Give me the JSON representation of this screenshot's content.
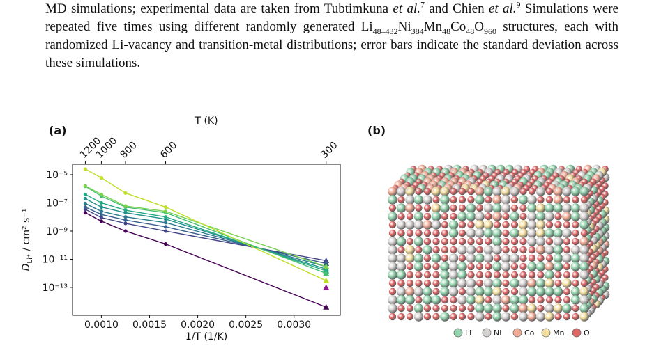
{
  "caption": [
    {
      "text": "MD simulations; experimental data are taken from Tubtimkuna ",
      "style": "normal"
    },
    {
      "text": "et al.",
      "style": "italic"
    },
    {
      "text": "7",
      "style": "sup"
    },
    {
      "text": " and Chien ",
      "style": "normal"
    },
    {
      "text": "et al.",
      "style": "italic"
    },
    {
      "text": "9",
      "style": "sup"
    },
    {
      "text": " Simulations were repeated five times using different randomly generated Li",
      "style": "normal"
    },
    {
      "text": "48–432",
      "style": "sub"
    },
    {
      "text": "Ni",
      "style": "normal"
    },
    {
      "text": "384",
      "style": "sub"
    },
    {
      "text": "Mn",
      "style": "normal"
    },
    {
      "text": "48",
      "style": "sub"
    },
    {
      "text": "Co",
      "style": "normal"
    },
    {
      "text": "48",
      "style": "sub"
    },
    {
      "text": "O",
      "style": "normal"
    },
    {
      "text": "960",
      "style": "sub"
    },
    {
      "text": " structures, each with randomized Li-vacancy and transition-metal distributions; error bars indicate the standard deviation across these simulations.",
      "style": "normal"
    }
  ],
  "panels": [
    "(a)",
    "(b)"
  ],
  "chart_data": {
    "type": "line",
    "x_label": "1/T (1/K)",
    "y_label": {
      "symbol": "D",
      "subscript": "Li⁺",
      "units": " / cm² s⁻¹"
    },
    "top_axis_label": "T (K)",
    "top_ticks": [
      1200,
      1000,
      800,
      600,
      300
    ],
    "x": [
      0.000833,
      0.001,
      0.00125,
      0.001667,
      0.003333
    ],
    "xlim": [
      0.0007,
      0.00348
    ],
    "xticks": [
      {
        "value": 0.001,
        "label": "0.0010"
      },
      {
        "value": 0.0015,
        "label": "0.0015"
      },
      {
        "value": 0.002,
        "label": "0.0020"
      },
      {
        "value": 0.0025,
        "label": "0.0025"
      },
      {
        "value": 0.003,
        "label": "0.0030"
      }
    ],
    "ylim": [
      1.05e-15,
      5.5e-05
    ],
    "log_y": true,
    "yticks": [
      {
        "value": 1e-05,
        "label": "10⁻⁵"
      },
      {
        "value": 1e-07,
        "label": "10⁻⁷"
      },
      {
        "value": 1e-09,
        "label": "10⁻⁹"
      },
      {
        "value": 1e-11,
        "label": "10⁻¹¹"
      },
      {
        "value": 1e-13,
        "label": "10⁻¹³"
      }
    ],
    "series": [
      {
        "color": "#440154",
        "values": [
          2e-08,
          5e-09,
          1e-09,
          1.2e-10,
          4e-15
        ]
      },
      {
        "color": "#414487",
        "values": [
          3.5e-08,
          9e-09,
          3.5e-09,
          1e-09,
          8e-12
        ]
      },
      {
        "color": "#355f8d",
        "values": [
          5e-08,
          1.5e-08,
          6e-09,
          2e-09,
          5e-12
        ]
      },
      {
        "color": "#2a788e",
        "values": [
          9e-08,
          2.5e-08,
          1e-08,
          4e-09,
          3e-12
        ]
      },
      {
        "color": "#21918c",
        "values": [
          2e-07,
          5e-08,
          2e-08,
          7e-09,
          2e-12
        ]
      },
      {
        "color": "#22a884",
        "values": [
          4e-07,
          1e-07,
          3e-08,
          1e-08,
          1.5e-12
        ]
      },
      {
        "color": "#44bf70",
        "values": [
          1.5e-06,
          3e-07,
          5e-08,
          2e-08,
          1e-12
        ]
      },
      {
        "color": "#7ad151",
        "values": [
          1.6e-06,
          4e-07,
          6e-08,
          2.5e-08,
          3e-12
        ]
      },
      {
        "color": "#bddf26",
        "values": [
          2.5e-05,
          6e-06,
          5e-07,
          5e-08,
          3e-13
        ]
      },
      {
        "color": "#8b1a8e",
        "values": [
          null,
          null,
          null,
          null,
          1e-13
        ]
      }
    ]
  },
  "structure_legend": [
    {
      "label": "Li",
      "color": "#93d3ad"
    },
    {
      "label": "Ni",
      "color": "#d6d1d1"
    },
    {
      "label": "Co",
      "color": "#f2ab95"
    },
    {
      "label": "Mn",
      "color": "#f6e0a0"
    },
    {
      "label": "O",
      "color": "#e06565"
    }
  ]
}
